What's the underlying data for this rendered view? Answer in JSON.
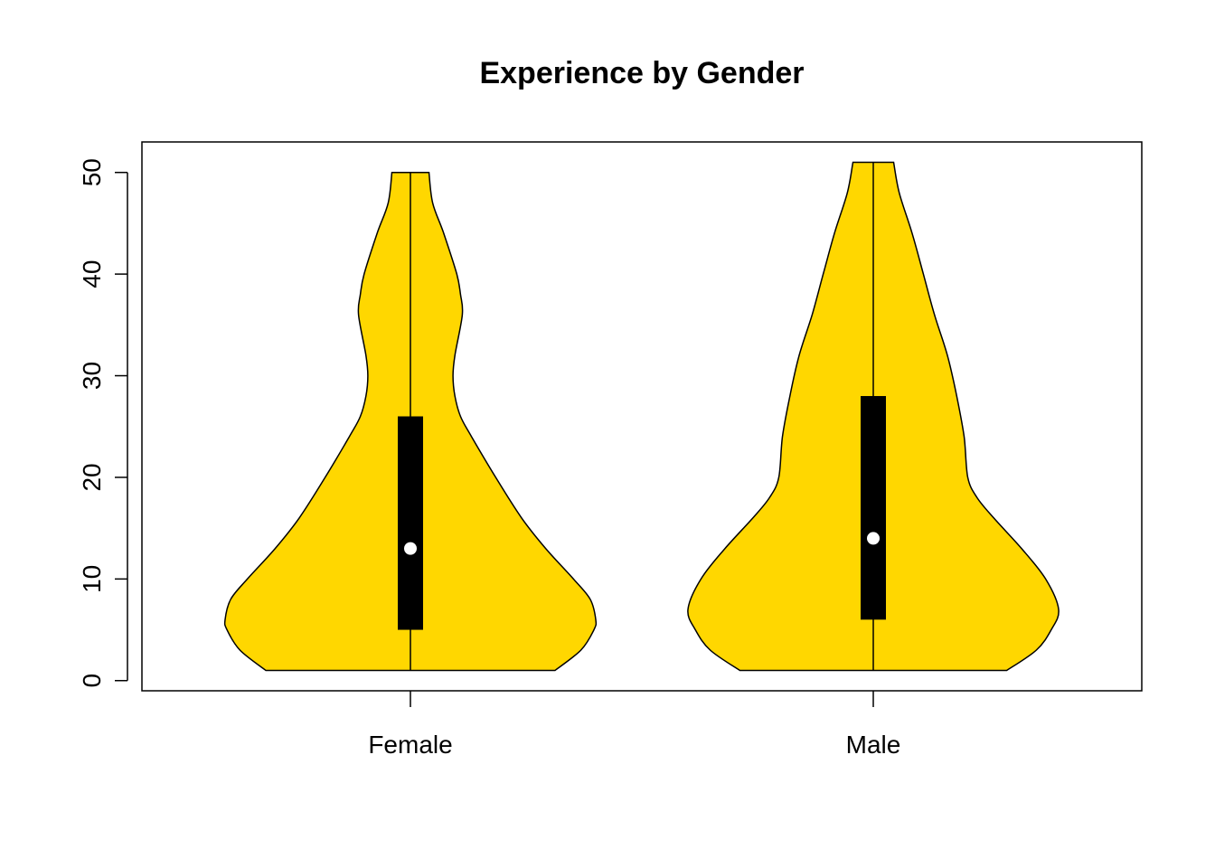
{
  "chart_data": {
    "type": "violin",
    "title": "Experience by Gender",
    "xlabel": "",
    "ylabel": "",
    "ylim": [
      -1,
      53
    ],
    "yticks": [
      0,
      10,
      20,
      30,
      40,
      50
    ],
    "grid": false,
    "fill_color": "#FFD700",
    "outline_color": "#000000",
    "median_color": "#FFFFFF",
    "categories": [
      "Female",
      "Male"
    ],
    "series": [
      {
        "category": "Female",
        "min": 1,
        "q1": 5,
        "median": 13,
        "q3": 26,
        "max": 50,
        "density": [
          [
            1,
            0.78
          ],
          [
            3,
            0.92
          ],
          [
            5,
            0.99
          ],
          [
            6,
            1.0
          ],
          [
            8,
            0.97
          ],
          [
            10,
            0.88
          ],
          [
            13,
            0.73
          ],
          [
            16,
            0.6
          ],
          [
            20,
            0.46
          ],
          [
            24,
            0.33
          ],
          [
            26,
            0.27
          ],
          [
            28,
            0.24
          ],
          [
            30,
            0.23
          ],
          [
            32,
            0.24
          ],
          [
            36,
            0.28
          ],
          [
            38,
            0.27
          ],
          [
            40,
            0.25
          ],
          [
            44,
            0.18
          ],
          [
            47,
            0.12
          ],
          [
            50,
            0.1
          ]
        ]
      },
      {
        "category": "Male",
        "min": 1,
        "q1": 6,
        "median": 14,
        "q3": 28,
        "max": 51,
        "density": [
          [
            1,
            0.72
          ],
          [
            3,
            0.88
          ],
          [
            5,
            0.96
          ],
          [
            7,
            1.0
          ],
          [
            10,
            0.93
          ],
          [
            13,
            0.8
          ],
          [
            16,
            0.65
          ],
          [
            18,
            0.56
          ],
          [
            20,
            0.51
          ],
          [
            24,
            0.49
          ],
          [
            28,
            0.45
          ],
          [
            32,
            0.4
          ],
          [
            36,
            0.33
          ],
          [
            40,
            0.27
          ],
          [
            44,
            0.21
          ],
          [
            48,
            0.14
          ],
          [
            51,
            0.11
          ]
        ]
      }
    ]
  }
}
